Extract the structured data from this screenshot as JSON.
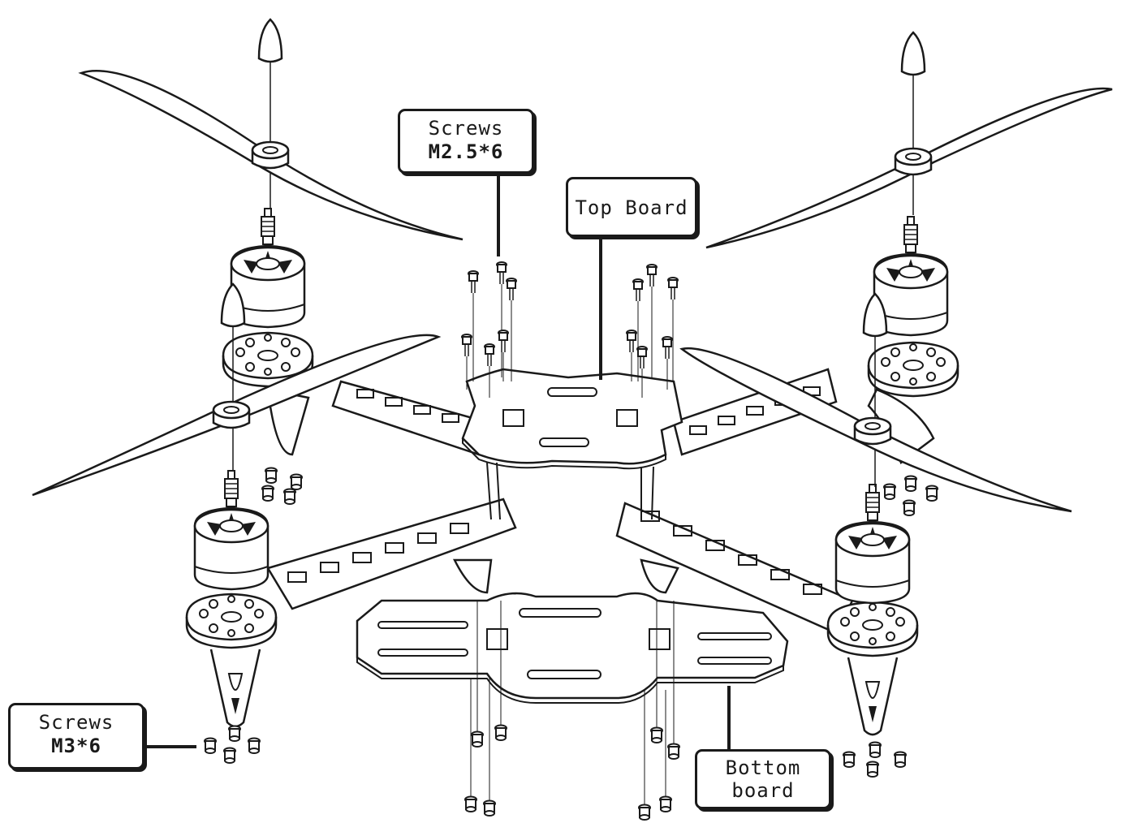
{
  "callouts": {
    "screws_top": {
      "line1": "Screws",
      "line2": "M2.5*6"
    },
    "top_board": {
      "label": "Top Board"
    },
    "screws_bottom_left": {
      "line1": "Screws",
      "line2": "M3*6"
    },
    "bottom_board": {
      "line1": "Bottom",
      "line2": "board"
    }
  },
  "colors": {
    "line": "#1a1a1a",
    "paper": "#ffffff"
  }
}
